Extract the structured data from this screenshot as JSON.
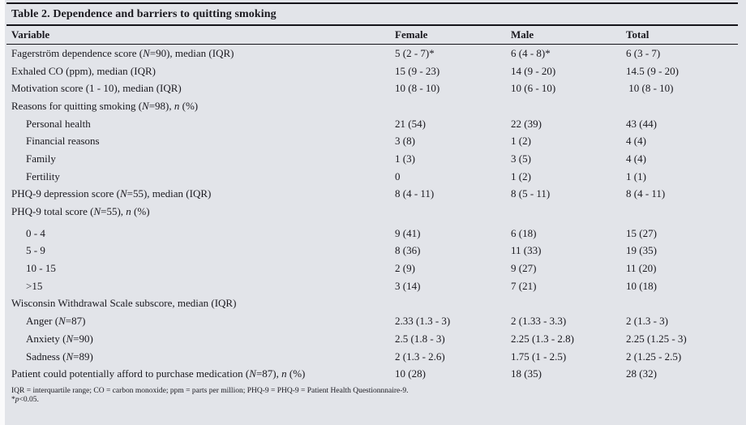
{
  "title": "Table 2. Dependence and barriers to quitting smoking",
  "columns": [
    "Variable",
    "Female",
    "Male",
    "Total"
  ],
  "rows": [
    {
      "label": "Fagerström dependence score (<i>N</i>=90), median (IQR)",
      "indent": false,
      "female": "5 (2 - 7)*",
      "male": "6 (4 - 8)*",
      "total": "6 (3 - 7)"
    },
    {
      "label": "Exhaled CO (ppm), median (IQR)",
      "indent": false,
      "female": "15 (9 - 23)",
      "male": "14 (9 - 20)",
      "total": "14.5 (9 - 20)"
    },
    {
      "label": "Motivation score (1 - 10), median (IQR)",
      "indent": false,
      "female": "10 (8 - 10)",
      "male": "10 (6 - 10)",
      "total": " 10 (8 - 10)"
    },
    {
      "label": "Reasons for quitting smoking (<i>N</i>=98), <i>n</i> (%)",
      "indent": false,
      "female": "",
      "male": "",
      "total": ""
    },
    {
      "label": "Personal health",
      "indent": true,
      "female": "21 (54)",
      "male": "22 (39)",
      "total": "43 (44)"
    },
    {
      "label": "Financial reasons",
      "indent": true,
      "female": "3 (8)",
      "male": "1 (2)",
      "total": "4 (4)"
    },
    {
      "label": "Family",
      "indent": true,
      "female": "1 (3)",
      "male": "3 (5)",
      "total": "4 (4)"
    },
    {
      "label": "Fertility",
      "indent": true,
      "female": "0",
      "male": "1 (2)",
      "total": "1 (1)"
    },
    {
      "label": "PHQ-9 depression score (<i>N</i>=55), median (IQR)",
      "indent": false,
      "female": "8 (4 - 11)",
      "male": "8 (5 - 11)",
      "total": "8 (4 - 11)"
    },
    {
      "label": "PHQ-9 total score (<i>N</i>=55), <i>n</i> (%)",
      "indent": false,
      "female": "",
      "male": "",
      "total": ""
    },
    {
      "label": "0 - 4",
      "indent": true,
      "gap_before": true,
      "female": "9 (41)",
      "male": "6 (18)",
      "total": "15 (27)"
    },
    {
      "label": "5 - 9",
      "indent": true,
      "female": "8 (36)",
      "male": "11 (33)",
      "total": "19 (35)"
    },
    {
      "label": "10 - 15",
      "indent": true,
      "female": "2 (9)",
      "male": "9 (27)",
      "total": "11 (20)"
    },
    {
      "label": "&gt;15",
      "indent": true,
      "female": "3 (14)",
      "male": "7 (21)",
      "total": "10 (18)"
    },
    {
      "label": "Wisconsin Withdrawal Scale subscore, median (IQR)",
      "indent": false,
      "female": "",
      "male": "",
      "total": ""
    },
    {
      "label": "Anger (<i>N</i>=87)",
      "indent": true,
      "female": "2.33 (1.3 - 3)",
      "male": "2 (1.33 - 3.3)",
      "total": "2 (1.3 - 3)"
    },
    {
      "label": "Anxiety (<i>N</i>=90)",
      "indent": true,
      "female": "2.5 (1.8 - 3)",
      "male": "2.25 (1.3 - 2.8)",
      "total": "2.25 (1.25 - 3)"
    },
    {
      "label": "Sadness (<i>N</i>=89)",
      "indent": true,
      "female": "2 (1.3 - 2.6)",
      "male": "1.75 (1 - 2.5)",
      "total": "2 (1.25 - 2.5)"
    },
    {
      "label": "Patient could potentially afford to purchase medication (<i>N</i>=87), <i>n</i> (%)",
      "indent": false,
      "female": "10 (28)",
      "male": "18 (35)",
      "total": "28 (32)"
    }
  ],
  "footnotes": [
    "IQR = interquartile range; CO = carbon monoxide; ppm = parts per million; PHQ-9 = PHQ-9 = Patient Health Questionnnaire-9.",
    "*<i>p</i>&lt;0.05."
  ],
  "colors": {
    "background": "#e2e4e9",
    "text": "#1a191f",
    "rule": "#15141a"
  }
}
